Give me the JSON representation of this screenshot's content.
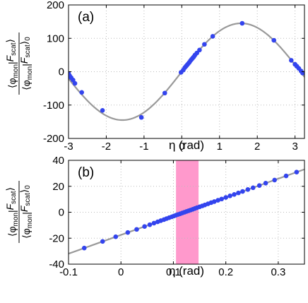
{
  "chart_data": [
    {
      "type": "scatter",
      "panel_label": "(a)",
      "xlabel_greek": "η",
      "xlabel_unit": " (rad)",
      "ylabel": {
        "num_open": "⟨",
        "num_phi": "φ",
        "num_sub": "mon",
        "num_sep": "|",
        "num_F": "F",
        "num_F_sub": "scat",
        "num_close": "⟩",
        "den_open": "⟨",
        "den_phi": "φ",
        "den_sub": "mon",
        "den_sep": "|",
        "den_F": "F",
        "den_F_sub": "scat",
        "den_close": "⟩",
        "den_zero": "0"
      },
      "xlim": [
        -3,
        3.25
      ],
      "ylim": [
        -200,
        200
      ],
      "xticks": [
        -3,
        -2,
        -1,
        0,
        1,
        2,
        3
      ],
      "yticks": [
        -200,
        -100,
        0,
        100,
        200
      ],
      "grid": true,
      "fit_curve": {
        "color": "#999999",
        "amplitude": 145,
        "form": "sine"
      },
      "points_color": "#3344ee",
      "points": [
        [
          -3.0,
          -5
        ],
        [
          -2.97,
          -12
        ],
        [
          -2.93,
          -18
        ],
        [
          -2.88,
          -25
        ],
        [
          -2.83,
          -35
        ],
        [
          -2.65,
          -62
        ],
        [
          -2.1,
          -116
        ],
        [
          -1.07,
          -137
        ],
        [
          -0.45,
          -64
        ],
        [
          -0.02,
          -2
        ],
        [
          0.04,
          5
        ],
        [
          0.08,
          12
        ],
        [
          0.11,
          16
        ],
        [
          0.14,
          20
        ],
        [
          0.17,
          24
        ],
        [
          0.2,
          28
        ],
        [
          0.23,
          33
        ],
        [
          0.26,
          37
        ],
        [
          0.29,
          41
        ],
        [
          0.32,
          45
        ],
        [
          0.35,
          50
        ],
        [
          0.4,
          56
        ],
        [
          0.47,
          65
        ],
        [
          0.6,
          82
        ],
        [
          0.82,
          106
        ],
        [
          1.6,
          145
        ],
        [
          2.44,
          94
        ],
        [
          2.9,
          34
        ],
        [
          3.0,
          22
        ],
        [
          3.05,
          16
        ],
        [
          3.1,
          10
        ],
        [
          3.16,
          2
        ],
        [
          3.2,
          -4
        ]
      ]
    },
    {
      "type": "scatter",
      "panel_label": "(b)",
      "xlabel_greek": "η",
      "xlabel_unit": " (rad)",
      "ylabel": {
        "num_open": "⟨",
        "num_phi": "φ",
        "num_sub": "mon",
        "num_sep": "|",
        "num_F": "F",
        "num_F_sub": "scat",
        "num_close": "⟩",
        "den_open": "⟨",
        "den_phi": "φ",
        "den_sub": "mon",
        "den_sep": "|",
        "den_F": "F",
        "den_F_sub": "scat",
        "den_close": "⟩",
        "den_zero": "0"
      },
      "xlim": [
        -0.1,
        0.35
      ],
      "ylim": [
        -40,
        40
      ],
      "xticks": [
        -0.1,
        0,
        0.1,
        0.2,
        0.3
      ],
      "yticks": [
        -40,
        -20,
        0,
        20,
        40
      ],
      "grid": true,
      "shaded_band": {
        "x_start": 0.105,
        "x_end": 0.148,
        "color": "#ff99cc"
      },
      "fit_line": {
        "color": "#999999",
        "slope": 144.5,
        "intercept": -17.5
      },
      "points_color": "#3344ee",
      "points": [
        [
          -0.07,
          -27.6
        ],
        [
          -0.035,
          -22.5
        ],
        [
          -0.01,
          -18.9
        ],
        [
          0.013,
          -15.6
        ],
        [
          0.03,
          -13.2
        ],
        [
          0.045,
          -11.0
        ],
        [
          0.055,
          -9.6
        ],
        [
          0.063,
          -8.4
        ],
        [
          0.07,
          -7.4
        ],
        [
          0.076,
          -6.5
        ],
        [
          0.082,
          -5.7
        ],
        [
          0.087,
          -4.9
        ],
        [
          0.092,
          -4.2
        ],
        [
          0.097,
          -3.5
        ],
        [
          0.101,
          -2.9
        ],
        [
          0.105,
          -2.3
        ],
        [
          0.109,
          -1.7
        ],
        [
          0.113,
          -1.2
        ],
        [
          0.117,
          -0.6
        ],
        [
          0.121,
          0.0
        ],
        [
          0.125,
          0.6
        ],
        [
          0.129,
          1.1
        ],
        [
          0.133,
          1.7
        ],
        [
          0.137,
          2.3
        ],
        [
          0.141,
          2.9
        ],
        [
          0.145,
          3.5
        ],
        [
          0.15,
          4.2
        ],
        [
          0.155,
          4.9
        ],
        [
          0.16,
          5.6
        ],
        [
          0.166,
          6.5
        ],
        [
          0.172,
          7.4
        ],
        [
          0.178,
          8.2
        ],
        [
          0.185,
          9.2
        ],
        [
          0.192,
          10.2
        ],
        [
          0.2,
          11.4
        ],
        [
          0.208,
          12.6
        ],
        [
          0.216,
          13.7
        ],
        [
          0.224,
          14.9
        ],
        [
          0.232,
          16.0
        ],
        [
          0.242,
          17.5
        ],
        [
          0.252,
          18.9
        ],
        [
          0.264,
          20.6
        ],
        [
          0.276,
          22.4
        ],
        [
          0.293,
          24.8
        ],
        [
          0.315,
          28.0
        ],
        [
          0.335,
          30.9
        ]
      ]
    }
  ]
}
